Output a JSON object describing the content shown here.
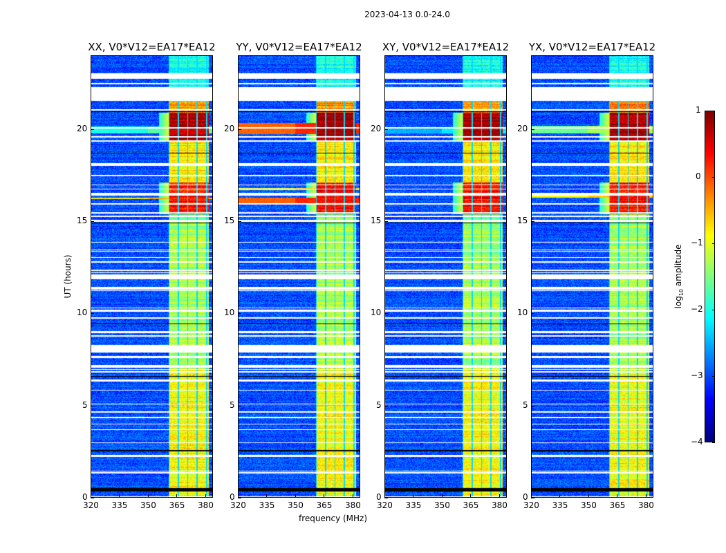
{
  "chart_data": {
    "type": "heatmap",
    "title": "2023-04-13 0.0-24.0",
    "xlabel": "frequency (MHz)",
    "ylabel": "UT (hours)",
    "xlim": [
      320,
      384
    ],
    "ylim": [
      0,
      24
    ],
    "xticks": [
      320,
      335,
      350,
      365,
      380
    ],
    "yticks": [
      0,
      5,
      10,
      15,
      20
    ],
    "colormap": "jet",
    "colorbar": {
      "label_prefix": "log",
      "label_sub": "10",
      "label_suffix": " amplitude",
      "range": [
        -4,
        1
      ],
      "ticks": [
        1,
        0,
        -1,
        -2,
        -3,
        -4
      ]
    },
    "panels": [
      {
        "title": "XX, V0*V12=EA17*EA12",
        "broadband_rows": [
          [
            19.8,
            20.15,
            -1.7
          ],
          [
            16.2,
            16.3,
            -0.5
          ]
        ]
      },
      {
        "title": "YY, V0*V12=EA17*EA12",
        "broadband_rows": [
          [
            19.75,
            20.35,
            0.2
          ],
          [
            15.9,
            16.3,
            0.2
          ],
          [
            16.7,
            16.8,
            -0.6
          ]
        ]
      },
      {
        "title": "XY, V0*V12=EA17*EA12",
        "broadband_rows": [
          [
            19.8,
            20.1,
            -2.2
          ],
          [
            16.4,
            16.5,
            -0.8
          ]
        ]
      },
      {
        "title": "YX, V0*V12=EA17*EA12",
        "broadband_rows": [
          [
            19.8,
            20.2,
            -1.3
          ],
          [
            16.3,
            16.4,
            -0.6
          ]
        ]
      }
    ],
    "background_level": -3.0,
    "rfi_band_mhz": [
      361,
      382
    ],
    "rfi_levels_by_hour": [
      [
        0,
        7,
        -0.9
      ],
      [
        7,
        15,
        -1.3
      ],
      [
        15.4,
        17.1,
        0.3
      ],
      [
        17.1,
        19.4,
        -0.8
      ],
      [
        19.4,
        20.9,
        0.8
      ],
      [
        20.9,
        21.5,
        -0.3
      ],
      [
        21.5,
        24,
        -2.0
      ]
    ],
    "flagged_hours": [
      [
        21.55,
        22.3
      ],
      [
        22.75,
        23.05
      ],
      [
        14.97,
        15.08
      ],
      [
        11.85,
        12.1
      ],
      [
        11.3,
        11.45
      ],
      [
        8.0,
        8.25
      ],
      [
        7.55,
        7.68
      ],
      [
        6.3,
        6.4
      ],
      [
        4.3,
        4.35
      ],
      [
        2.2,
        2.3
      ]
    ],
    "dead_rows_hours": [
      [
        0.3,
        0.5
      ],
      [
        2.5,
        2.55
      ],
      [
        6.55,
        6.6
      ],
      [
        9.4,
        9.45
      ],
      [
        14.9,
        14.95
      ],
      [
        18.7,
        18.75
      ],
      [
        20.95,
        21.0
      ]
    ]
  }
}
